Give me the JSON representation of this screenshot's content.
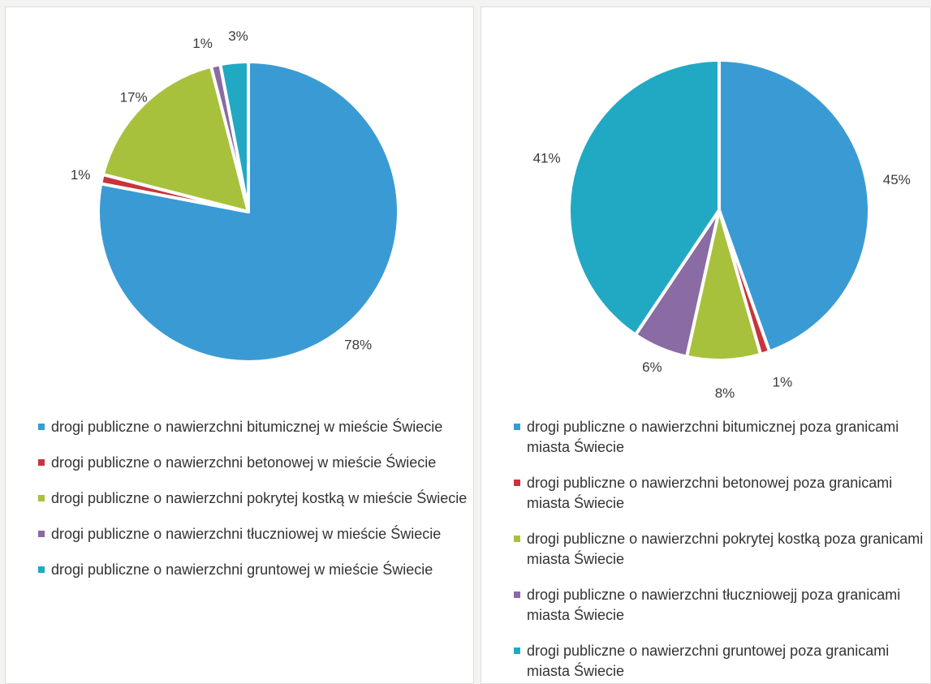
{
  "chart_data": [
    {
      "type": "pie",
      "start_angle_deg": 0,
      "direction": "clockwise",
      "slices": [
        {
          "label": "drogi publiczne o nawierzchni bitumicznej w mieście Świecie",
          "value": 78,
          "label_text": "78%",
          "color": "#3a9bd4"
        },
        {
          "label": "drogi publiczne o nawierzchni betonowej w mieście Świecie",
          "value": 1,
          "label_text": "1%",
          "color": "#c8343c"
        },
        {
          "label": "drogi publiczne o nawierzchni pokrytej kostką w mieście Świecie",
          "value": 17,
          "label_text": "17%",
          "color": "#a7c13c"
        },
        {
          "label": "drogi publiczne o nawierzchni tłuczniowej w mieście Świecie",
          "value": 1,
          "label_text": "1%",
          "color": "#8a6ba3"
        },
        {
          "label": "drogi publiczne o nawierzchni gruntowej w mieście Świecie",
          "value": 3,
          "label_text": "3%",
          "color": "#21a9c4"
        }
      ],
      "legend_position": "bottom"
    },
    {
      "type": "pie",
      "start_angle_deg": 0,
      "direction": "clockwise",
      "slices": [
        {
          "label": "drogi publiczne o nawierzchni bitumicznej poza granicami miasta Świecie",
          "value": 45,
          "label_text": "45%",
          "color": "#3a9bd4"
        },
        {
          "label": "drogi publiczne o nawierzchni betonowej poza granicami miasta Świecie",
          "value": 1,
          "label_text": "1%",
          "color": "#c8343c"
        },
        {
          "label": "drogi publiczne o nawierzchni pokrytej kostką poza granicami miasta Świecie",
          "value": 8,
          "label_text": "8%",
          "color": "#a7c13c"
        },
        {
          "label": "drogi publiczne o nawierzchni tłuczniowejj poza granicami miasta Świecie",
          "value": 6,
          "label_text": "6%",
          "color": "#8a6ba3"
        },
        {
          "label": "drogi publiczne o nawierzchni gruntowej poza granicami miasta Świecie",
          "value": 41,
          "label_text": "41%",
          "color": "#21a9c4"
        }
      ],
      "legend_position": "bottom"
    }
  ]
}
